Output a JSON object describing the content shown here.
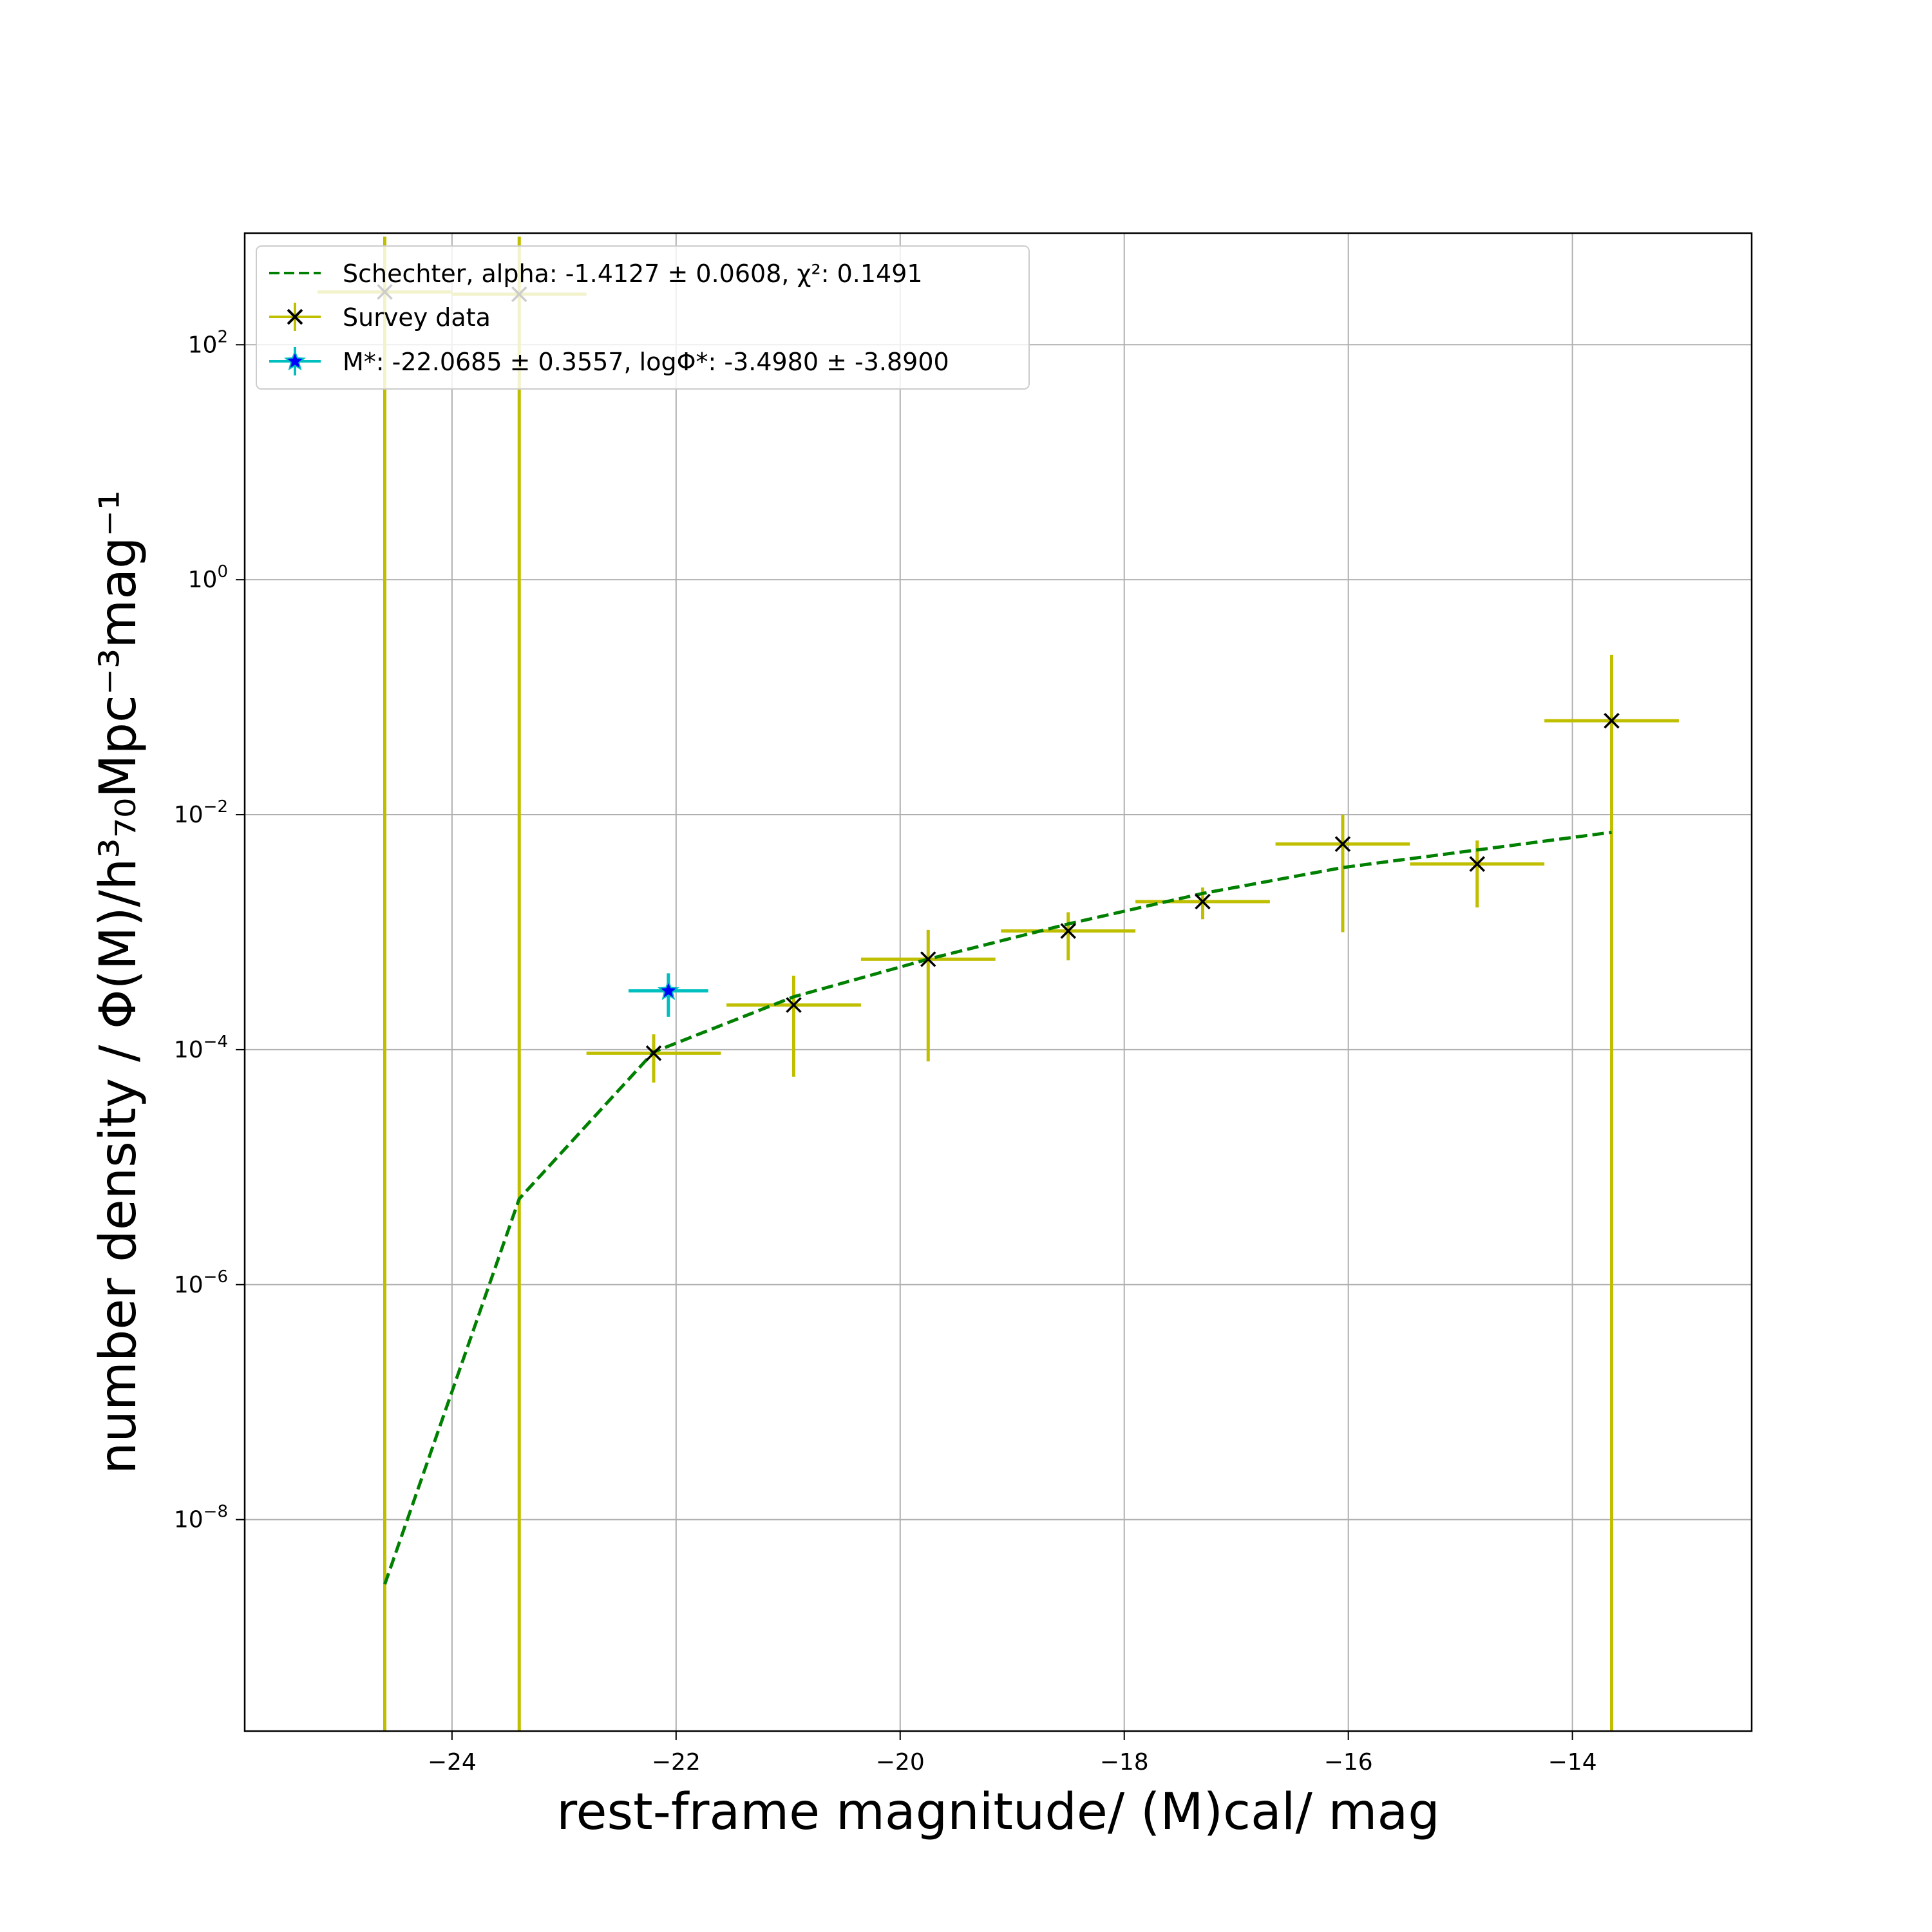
{
  "chart_data": {
    "type": "scatter",
    "xlabel": "rest-frame magnitude/ (M)cal/ mag",
    "ylabel": "number density / Φ(M)/h³₇₀Mpc⁻³mag⁻¹",
    "xlim": [
      -25.85,
      -12.4
    ],
    "ylim_log10": [
      -9.8,
      2.95
    ],
    "yscale": "log",
    "grid": true,
    "legend_position": "upper-left",
    "x_ticks": [
      -24,
      -22,
      -20,
      -18,
      -16,
      -14
    ],
    "x_tick_labels": [
      "−24",
      "−22",
      "−20",
      "−18",
      "−16",
      "−14"
    ],
    "y_ticks_log10": [
      2,
      0,
      -2,
      -4,
      -6,
      -8
    ],
    "y_tick_bases": [
      "10",
      "10",
      "10",
      "10",
      "10",
      "10"
    ],
    "y_tick_exponents": [
      "2",
      "0",
      "−2",
      "−4",
      "−6",
      "−8"
    ],
    "series": [
      {
        "name": "Schechter, alpha: -1.4127 ± 0.0608, χ²: 0.1491",
        "style": "dashed-line",
        "color": "#008000",
        "x": [
          -24.6,
          -23.4,
          -22.2,
          -20.95,
          -19.75,
          -18.5,
          -17.3,
          -16.05,
          -14.85,
          -13.65
        ],
        "log10_y": [
          -8.55,
          -5.27,
          -4.02,
          -3.55,
          -3.23,
          -2.93,
          -2.67,
          -2.45,
          -2.3,
          -2.15
        ]
      },
      {
        "name": "Survey data",
        "style": "errorbar",
        "marker": "x",
        "marker_color": "#000000",
        "errorbar_color": "#bfbf00",
        "points": [
          {
            "x": -24.6,
            "log10_y": 2.45,
            "x_err": 0.6,
            "log10_y_low": -10.5,
            "log10_y_high": 2.92
          },
          {
            "x": -23.4,
            "log10_y": 2.43,
            "x_err": 0.6,
            "log10_y_low": -10.5,
            "log10_y_high": 2.92
          },
          {
            "x": -22.2,
            "log10_y": -4.03,
            "x_err": 0.6,
            "log10_y_low": -4.28,
            "log10_y_high": -3.87
          },
          {
            "x": -20.95,
            "log10_y": -3.62,
            "x_err": 0.6,
            "log10_y_low": -4.23,
            "log10_y_high": -3.37
          },
          {
            "x": -19.75,
            "log10_y": -3.23,
            "x_err": 0.6,
            "log10_y_low": -4.1,
            "log10_y_high": -2.98
          },
          {
            "x": -18.5,
            "log10_y": -2.99,
            "x_err": 0.6,
            "log10_y_low": -3.24,
            "log10_y_high": -2.83
          },
          {
            "x": -17.3,
            "log10_y": -2.74,
            "x_err": 0.6,
            "log10_y_low": -2.89,
            "log10_y_high": -2.62
          },
          {
            "x": -16.05,
            "log10_y": -2.25,
            "x_err": 0.6,
            "log10_y_low": -3.0,
            "log10_y_high": -2.0
          },
          {
            "x": -14.85,
            "log10_y": -2.42,
            "x_err": 0.6,
            "log10_y_low": -2.79,
            "log10_y_high": -2.22
          },
          {
            "x": -13.65,
            "log10_y": -1.2,
            "x_err": 0.6,
            "log10_y_low": -10.5,
            "log10_y_high": -0.64
          }
        ]
      },
      {
        "name": "M*: -22.0685 ± 0.3557, logΦ*: -3.4980 ± -3.8900",
        "style": "errorbar",
        "marker": "star",
        "marker_color": "#0000ff",
        "errorbar_color": "#00bfbf",
        "points": [
          {
            "x": -22.0685,
            "log10_y": -3.5,
            "x_err": 0.3557,
            "log10_y_low": -3.72,
            "log10_y_high": -3.35
          }
        ]
      }
    ],
    "legend": {
      "entries": [
        {
          "label": "Schechter, alpha: -1.4127 ± 0.0608, χ²: 0.1491"
        },
        {
          "label": "Survey data"
        },
        {
          "label": "M*: -22.0685 ± 0.3557, logΦ*: -3.4980 ± -3.8900"
        }
      ]
    }
  }
}
